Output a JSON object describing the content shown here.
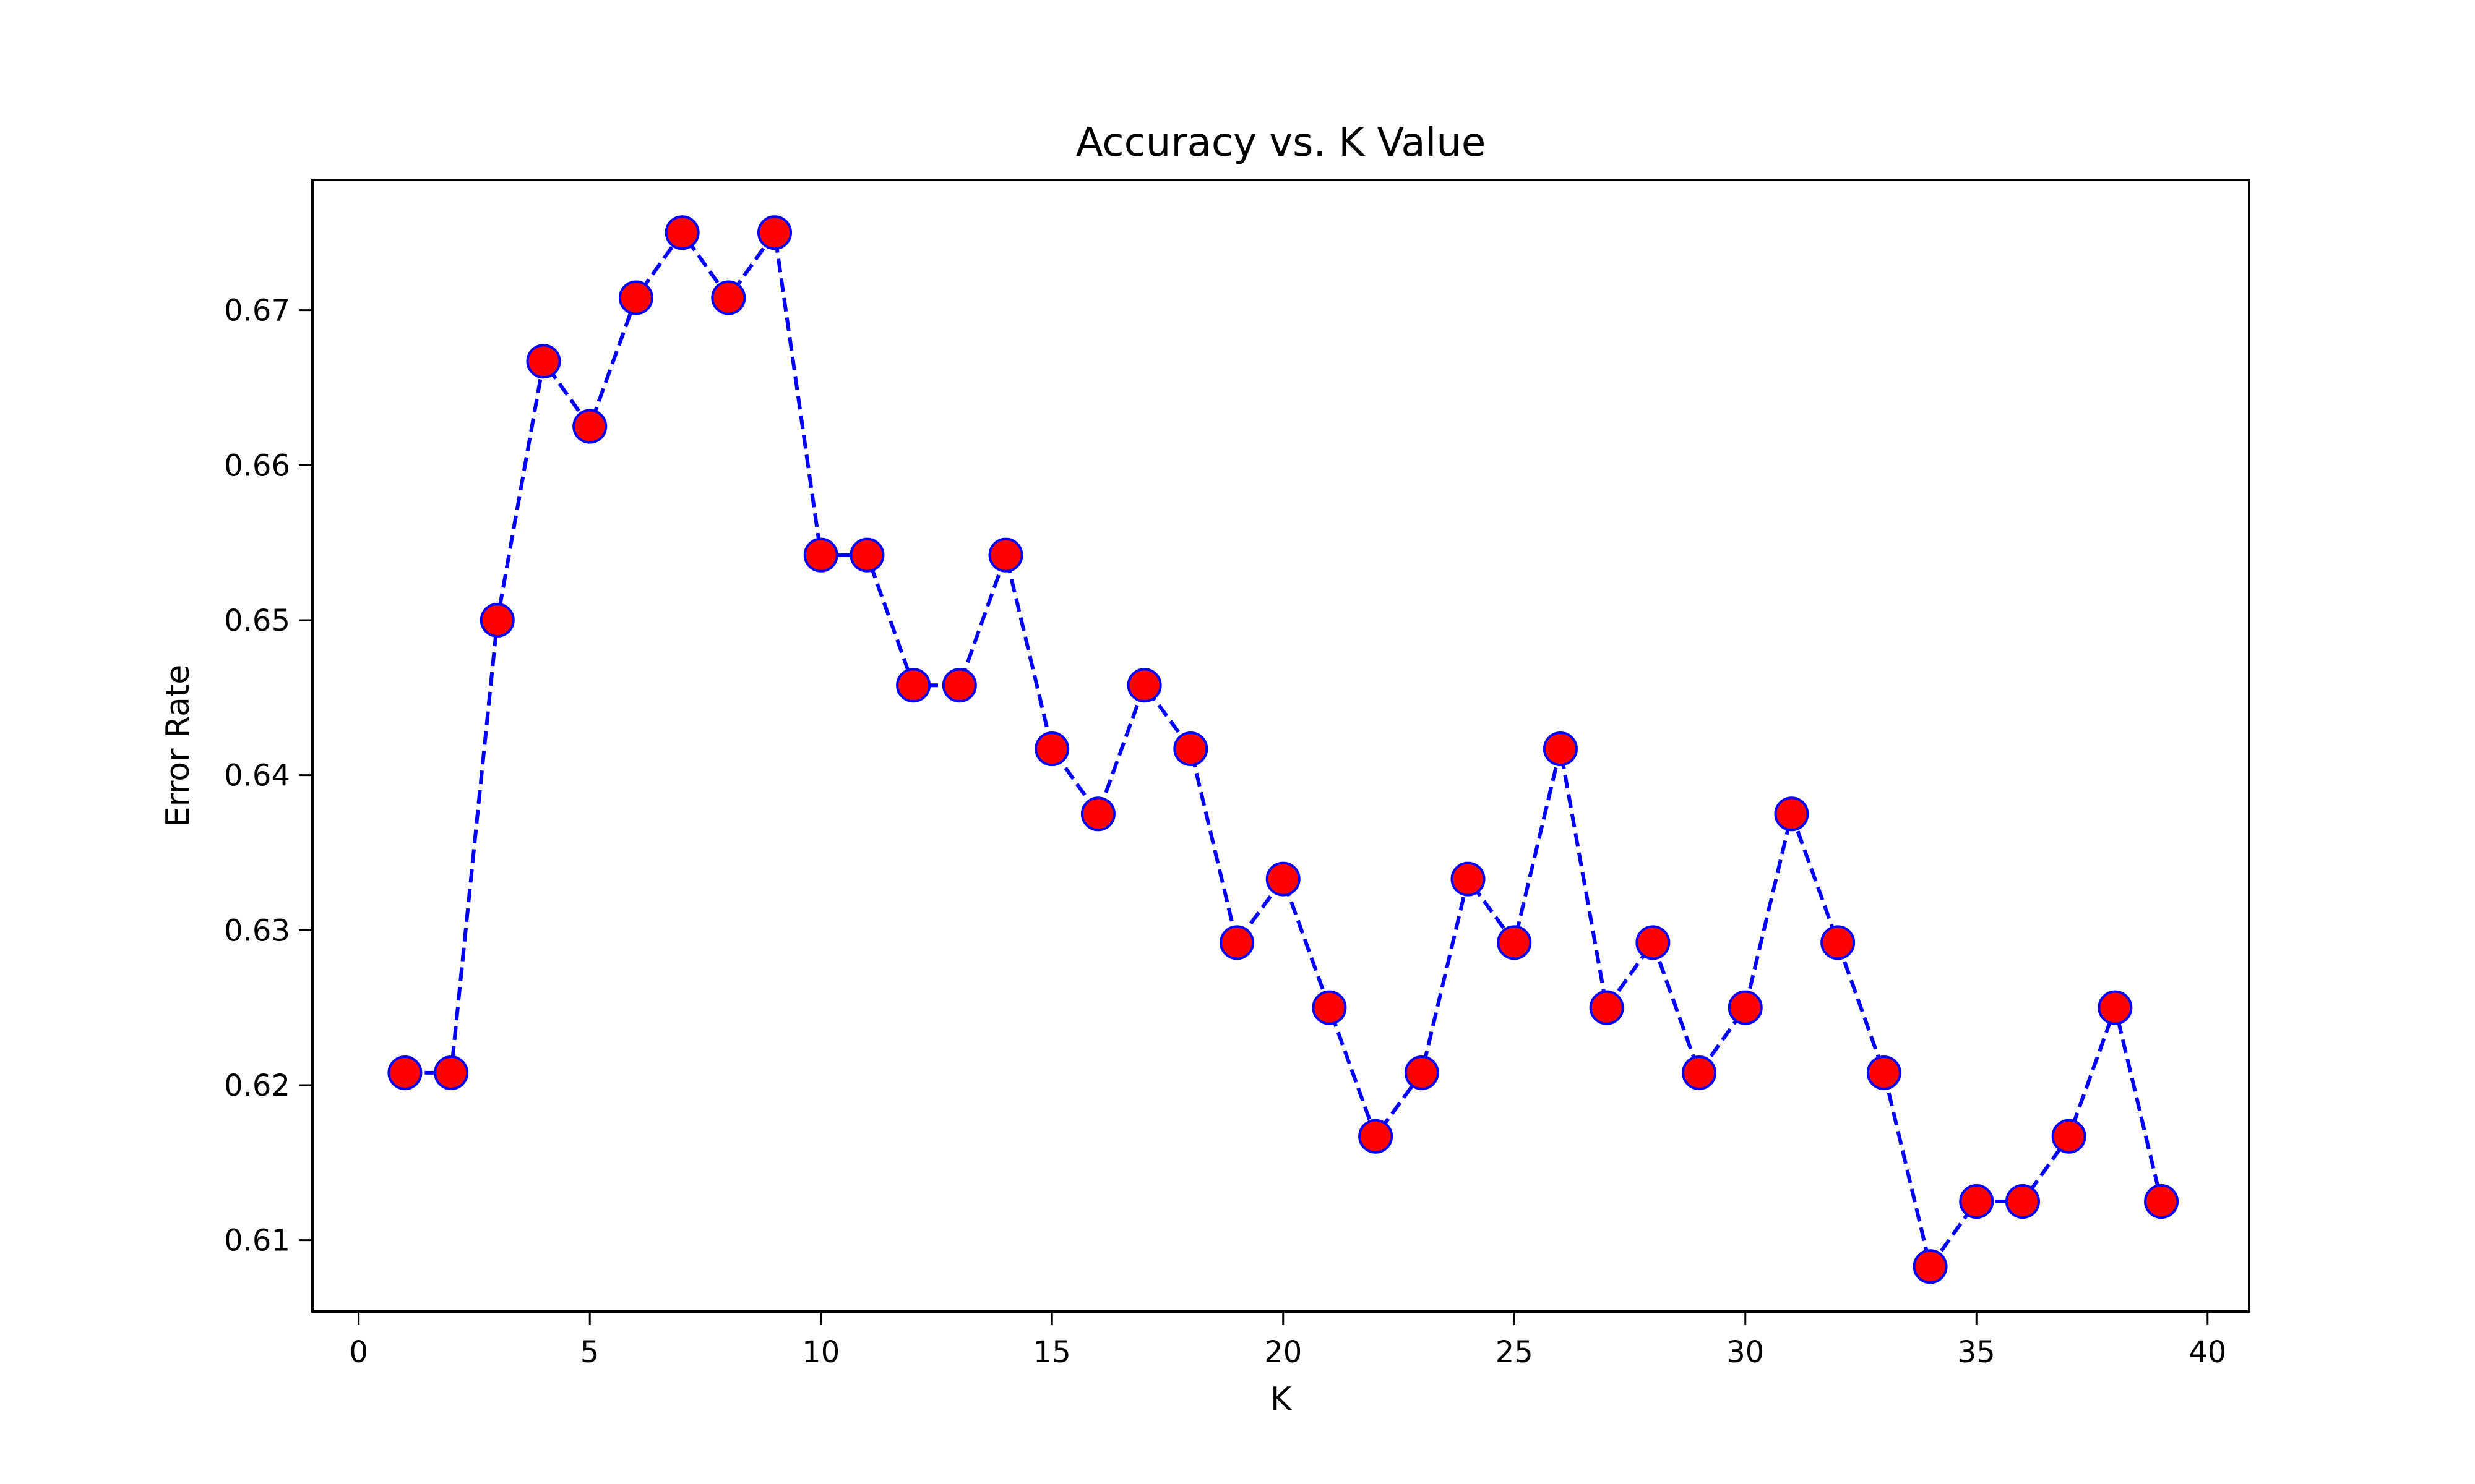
{
  "chart_data": {
    "type": "line",
    "title": "Accuracy vs. K Value",
    "xlabel": "K",
    "ylabel": "Error Rate",
    "xlim": [
      -1,
      40.9
    ],
    "ylim": [
      0.6054,
      0.6784
    ],
    "xticks": [
      0,
      5,
      10,
      15,
      20,
      25,
      30,
      35,
      40
    ],
    "yticks": [
      0.61,
      0.62,
      0.63,
      0.64,
      0.65,
      0.66,
      0.67
    ],
    "ytick_labels": [
      "0.61",
      "0.62",
      "0.63",
      "0.64",
      "0.65",
      "0.66",
      "0.67"
    ],
    "grid": false,
    "series": [
      {
        "line_color": "#0000ff",
        "line_style": "dashed",
        "marker": "circle",
        "marker_face_color": "#ff0000",
        "marker_edge_color": "#0000ff",
        "x": [
          1,
          2,
          3,
          4,
          5,
          6,
          7,
          8,
          9,
          10,
          11,
          12,
          13,
          14,
          15,
          16,
          17,
          18,
          19,
          20,
          21,
          22,
          23,
          24,
          25,
          26,
          27,
          28,
          29,
          30,
          31,
          32,
          33,
          34,
          35,
          36,
          37,
          38,
          39
        ],
        "values": [
          0.6208,
          0.6208,
          0.65,
          0.6667,
          0.6625,
          0.6708,
          0.675,
          0.6708,
          0.675,
          0.6542,
          0.6542,
          0.6458,
          0.6458,
          0.6542,
          0.6417,
          0.6375,
          0.6458,
          0.6417,
          0.6292,
          0.6333,
          0.625,
          0.6167,
          0.6208,
          0.6333,
          0.6292,
          0.6417,
          0.625,
          0.6292,
          0.6208,
          0.625,
          0.6375,
          0.6292,
          0.6208,
          0.6083,
          0.6125,
          0.6125,
          0.6167,
          0.625,
          0.6125
        ]
      }
    ]
  }
}
